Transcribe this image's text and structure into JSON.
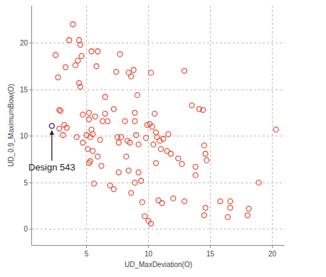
{
  "chart_data": {
    "type": "scatter",
    "x_label": "UD_MaxDeviation(O)",
    "y_label": "UD_0.9_MaximumBow(O)",
    "color": "#e5533d",
    "marker": "open circle",
    "grid": true,
    "xlim": [
      0.6,
      21
    ],
    "ylim": [
      -1.7,
      24
    ],
    "xticks": [
      5,
      10,
      15,
      20
    ],
    "yticks": [
      0,
      5,
      10,
      15,
      20
    ],
    "x": [
      2.5,
      2.7,
      2.8,
      2.9,
      2.8,
      3.3,
      3.6,
      3.9,
      3.2,
      3.4,
      3.1,
      4.1,
      4.3,
      4.4,
      4.5,
      4.6,
      4.4,
      4.5,
      4.2,
      4.7,
      4.7,
      5.0,
      5.2,
      5.2,
      5.1,
      5.3,
      5.2,
      5.4,
      5.5,
      5.5,
      5.3,
      5.6,
      5.4,
      5.9,
      5.8,
      5.7,
      5.9,
      6.1,
      6.2,
      6.3,
      6.5,
      6.5,
      6.7,
      6.9,
      7.2,
      7.2,
      7.5,
      7.4,
      7.7,
      7.6,
      7.6,
      7.8,
      8.1,
      8.2,
      8.3,
      8.4,
      8.5,
      8.4,
      8.6,
      8.8,
      8.6,
      8.9,
      8.9,
      8.9,
      9.1,
      9.0,
      9.2,
      9.2,
      9.4,
      9.5,
      9.7,
      9.8,
      9.9,
      10.0,
      10.2,
      10.1,
      10.2,
      10.3,
      10.4,
      10.5,
      10.6,
      10.6,
      10.7,
      10.8,
      10.9,
      11.0,
      11.2,
      11.1,
      11.5,
      11.6,
      11.8,
      12.0,
      12.4,
      12.9,
      12.9,
      12.7,
      13.5,
      13.8,
      13.8,
      14.1,
      14.4,
      14.5,
      14.6,
      14.7,
      14.6,
      14.5,
      15.8,
      16.4,
      16.6,
      16.6,
      18.0,
      18.1,
      18.9,
      20.3
    ],
    "values": [
      18.7,
      16.3,
      12.8,
      12.7,
      10.8,
      17.4,
      20.3,
      22.0,
      11.2,
      10.9,
      10.1,
      17.6,
      18.1,
      20.3,
      19.8,
      18.6,
      15.7,
      15.3,
      9.9,
      12.3,
      9.3,
      10.1,
      11.8,
      12.5,
      8.6,
      7.3,
      7.1,
      10.7,
      10.2,
      8.4,
      9.9,
      4.9,
      19.1,
      19.1,
      17.5,
      12.1,
      7.8,
      9.6,
      6.8,
      11.6,
      14.2,
      12.4,
      11.6,
      4.7,
      4.3,
      12.9,
      9.9,
      16.9,
      18.8,
      9.3,
      6.1,
      9.9,
      11.6,
      7.8,
      9.5,
      6.3,
      9.3,
      16.8,
      16.4,
      17.1,
      3.9,
      12.5,
      11.6,
      5.0,
      14.4,
      10.1,
      9.1,
      6.1,
      5.2,
      2.9,
      1.4,
      9.8,
      11.2,
      0.9,
      0.6,
      11.3,
      16.8,
      11.0,
      9.1,
      12.4,
      10.4,
      7.1,
      9.9,
      3.1,
      9.5,
      8.6,
      9.7,
      2.8,
      8.4,
      10.2,
      8.1,
      3.3,
      7.6,
      17.0,
      3.0,
      7.0,
      13.3,
      6.7,
      5.8,
      12.9,
      12.8,
      9.0,
      8.1,
      7.4,
      2.3,
      1.5,
      3.0,
      1.3,
      2.3,
      3.0,
      1.5,
      2.2,
      5.0,
      10.7
    ],
    "annotations": [
      {
        "text": "Design 543",
        "x": 2.2,
        "y": 11.1,
        "color": "#4b3f72"
      }
    ]
  }
}
